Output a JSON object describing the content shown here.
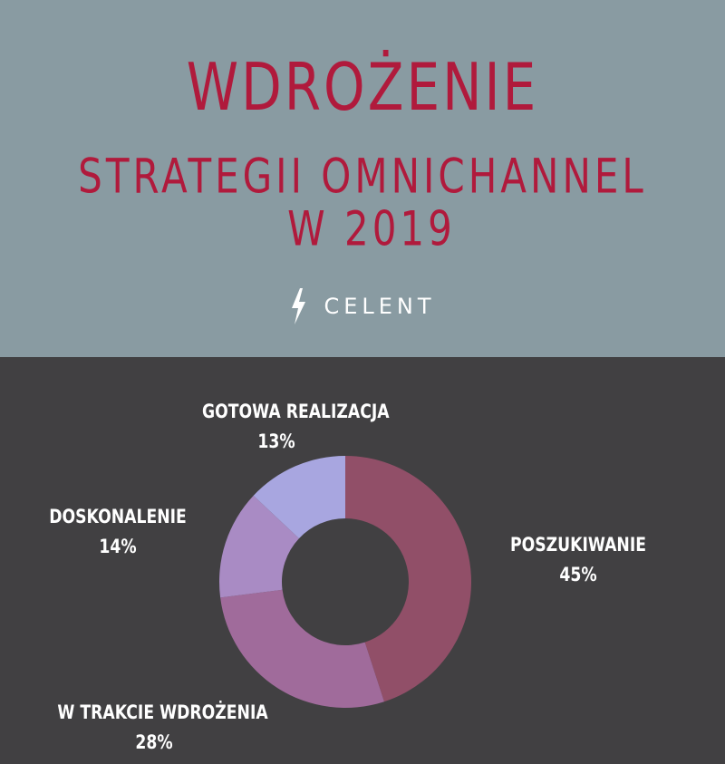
{
  "header": {
    "title_line1": "WDROŻENIE",
    "title_line2": "STRATEGII OMNICHANNEL",
    "title_line3": "W 2019",
    "brand": "CELENT",
    "brand_icon": "lightning-bolt-icon"
  },
  "colors": {
    "header_bg": "#899ba2",
    "chart_bg": "#414042",
    "title": "#b01a3c"
  },
  "chart_data": {
    "type": "pie",
    "donut": true,
    "categories": [
      "POSZUKIWANIE",
      "W TRAKCIE WDROŻENIA",
      "DOSKONALENIE",
      "GOTOWA REALIZACJA"
    ],
    "values": [
      45,
      28,
      14,
      13
    ],
    "labels": [
      "45%",
      "28%",
      "14%",
      "13%"
    ],
    "colors": [
      "#914f68",
      "#a06b9b",
      "#a98bc4",
      "#a8a6e0"
    ],
    "start": "12 o'clock",
    "direction": "clockwise"
  }
}
